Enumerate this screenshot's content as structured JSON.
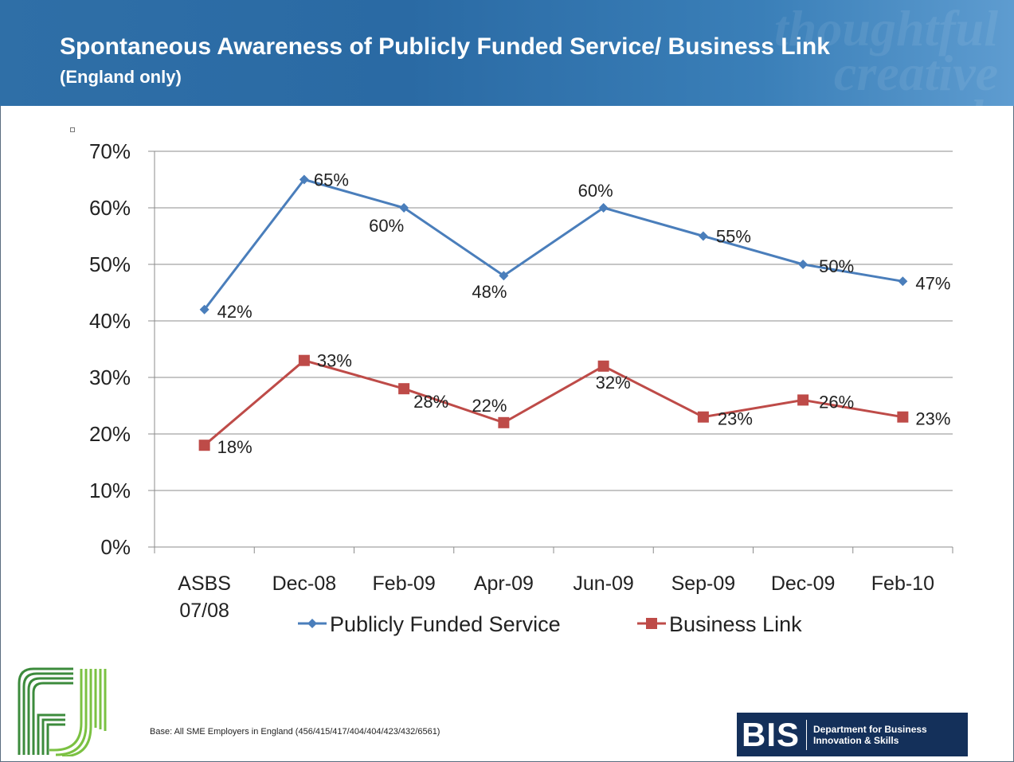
{
  "header": {
    "title": "Spontaneous Awareness of Publicly Funded Service/ Business Link",
    "subtitle": "(England only)",
    "watermark": "thoughtful creative research"
  },
  "footer": {
    "base_note": "Base: All SME Employers in England (456/415/417/404/404/423/432/6561)",
    "bis_letters": "BIS",
    "bis_dept_line1": "Department for Business",
    "bis_dept_line2": "Innovation & Skills"
  },
  "chart_data": {
    "type": "line",
    "categories": [
      "ASBS 07/08",
      "Dec-08",
      "Feb-09",
      "Apr-09",
      "Jun-09",
      "Sep-09",
      "Dec-09",
      "Feb-10"
    ],
    "category_lines": [
      [
        "ASBS",
        "07/08"
      ],
      [
        "Dec-08"
      ],
      [
        "Feb-09"
      ],
      [
        "Apr-09"
      ],
      [
        "Jun-09"
      ],
      [
        "Sep-09"
      ],
      [
        "Dec-09"
      ],
      [
        "Feb-10"
      ]
    ],
    "ylim": [
      0,
      70
    ],
    "yticks": [
      0,
      10,
      20,
      30,
      40,
      50,
      60,
      70
    ],
    "ytick_labels": [
      "0%",
      "10%",
      "20%",
      "30%",
      "40%",
      "50%",
      "60%",
      "70%"
    ],
    "grid": true,
    "legend_position": "bottom",
    "series": [
      {
        "name": "Publicly Funded Service",
        "color": "#4a7ebb",
        "marker": "diamond",
        "values": [
          42,
          65,
          60,
          48,
          60,
          55,
          50,
          47
        ],
        "labels": [
          "42%",
          "65%",
          "60%",
          "48%",
          "60%",
          "55%",
          "50%",
          "47%"
        ]
      },
      {
        "name": "Business Link",
        "color": "#be4b48",
        "marker": "square",
        "values": [
          18,
          33,
          28,
          22,
          32,
          23,
          26,
          23
        ],
        "labels": [
          "18%",
          "33%",
          "28%",
          "22%",
          "32%",
          "23%",
          "26%",
          "23%"
        ]
      }
    ]
  }
}
